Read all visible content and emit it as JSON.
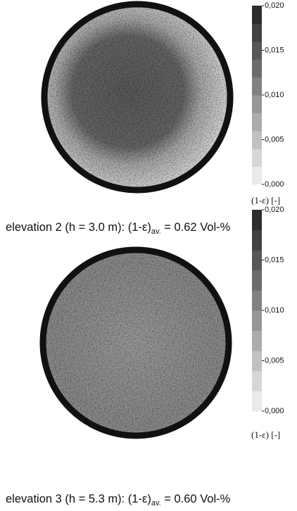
{
  "panels": [
    {
      "colorbar": {
        "range": [
          0,
          0.02
        ],
        "ticks": [
          {
            "value": 0.02,
            "label": "0,020"
          },
          {
            "value": 0.015,
            "label": "0,015"
          },
          {
            "value": 0.01,
            "label": "0,010"
          },
          {
            "value": 0.005,
            "label": "0,005"
          },
          {
            "value": 0,
            "label": "0,000"
          }
        ],
        "label": "(1-ε) [-]"
      },
      "caption": {
        "main": "elevation 2 (h = 3.0 m): (1-ε)",
        "subscript": "av.",
        "tail": " = 0.62 Vol-%"
      }
    },
    {
      "colorbar": {
        "range": [
          0,
          0.02
        ],
        "ticks": [
          {
            "value": 0.02,
            "label": "0,020"
          },
          {
            "value": 0.015,
            "label": "0,015"
          },
          {
            "value": 0.01,
            "label": "0,010"
          },
          {
            "value": 0.005,
            "label": "0,005"
          },
          {
            "value": 0,
            "label": "0,000"
          }
        ],
        "label": "(1-ε) [-]"
      },
      "caption": {
        "main": "elevation 3 (h = 5.3 m): (1-ε)",
        "subscript": "av.",
        "tail": " = 0.60 Vol-%"
      }
    }
  ]
}
